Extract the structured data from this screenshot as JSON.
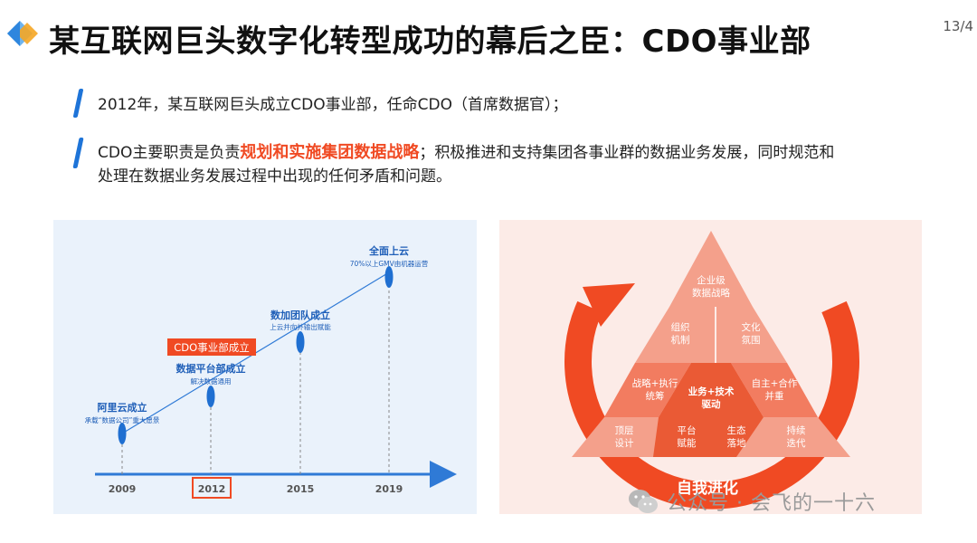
{
  "header": {
    "title": "某互联网巨头数字化转型成功的幕后之臣：CDO事业部",
    "page_number": "13/4"
  },
  "bullets": [
    {
      "text": "2012年，某互联网巨头成立CDO事业部，任命CDO（首席数据官）；"
    },
    {
      "line1_pre": "CDO主要职责是负责",
      "line1_highlight": "规划和实施集团数据战略",
      "line1_post": "；积极推进和支持集团各事业群的数据业务发展，同时规范和",
      "line2": "处理在数据业务发展过程中出现的任何矛盾和问题。"
    }
  ],
  "timeline": {
    "years": [
      "2009",
      "2012",
      "2015",
      "2019"
    ],
    "highlighted_year": "2012",
    "milestones": [
      {
        "title": "阿里云成立",
        "subtitle": "承载“数据公司”重大愿景"
      },
      {
        "title": "数据平台部成立",
        "subtitle": "解决数据通用",
        "tag": "CDO事业部成立"
      },
      {
        "title": "数加团队成立",
        "subtitle": "上云并向外输出赋能"
      },
      {
        "title": "全面上云",
        "subtitle": "70%以上GMV由机器运营"
      }
    ],
    "colors": {
      "axis": "#2f7ad6",
      "marker": "#1f6fd1",
      "tag": "#f04a23"
    }
  },
  "pyramid": {
    "top": [
      "企业级",
      "数据战略"
    ],
    "mid_left": [
      "组织",
      "机制"
    ],
    "mid_right": [
      "文化",
      "氛围"
    ],
    "row3_left": [
      "战略+执行",
      "统筹"
    ],
    "row3_center": [
      "业务+技术",
      "驱动"
    ],
    "row3_right": [
      "自主+合作",
      "并重"
    ],
    "bottom": [
      [
        "顶层",
        "设计"
      ],
      [
        "平台",
        "赋能"
      ],
      [
        "生态",
        "落地"
      ],
      [
        "持续",
        "迭代"
      ]
    ],
    "cycle_label": "自我进化",
    "colors": {
      "arrow": "#f04a23",
      "light": "#f4a08b",
      "mid": "#f27c60",
      "dark": "#ea5a35"
    }
  },
  "watermark": {
    "text": "公众号 · 会飞的一十六",
    "icon": "wechat-icon"
  }
}
